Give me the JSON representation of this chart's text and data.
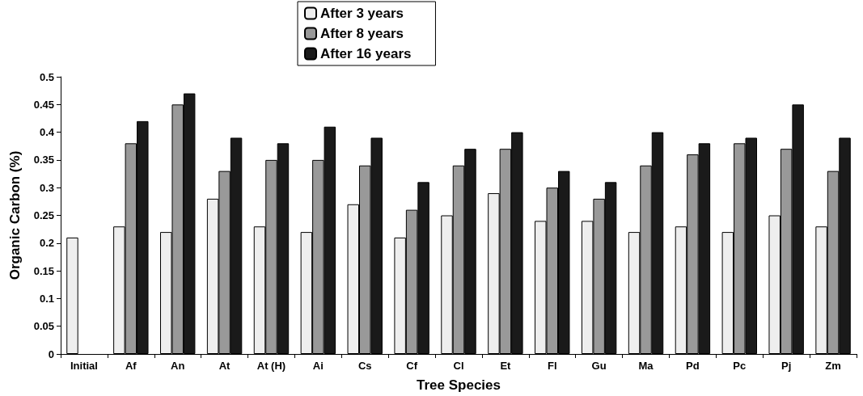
{
  "chart_data": {
    "type": "bar",
    "xlabel": "Tree Species",
    "ylabel": "Organic Carbon (%)",
    "categories": [
      "Initial",
      "Af",
      "An",
      "At",
      "At (H)",
      "Ai",
      "Cs",
      "Cf",
      "Cl",
      "Et",
      "Fl",
      "Gu",
      "Ma",
      "Pd",
      "Pc",
      "Pj",
      "Zm"
    ],
    "series": [
      {
        "name": "After 3 years",
        "color": "#eeeeee",
        "values": [
          0.21,
          0.23,
          0.22,
          0.28,
          0.23,
          0.22,
          0.27,
          0.21,
          0.25,
          0.29,
          0.24,
          0.24,
          0.22,
          0.23,
          0.22,
          0.25,
          0.23
        ]
      },
      {
        "name": "After 8 years",
        "color": "#999999",
        "values": [
          null,
          0.38,
          0.45,
          0.33,
          0.35,
          0.35,
          0.34,
          0.26,
          0.34,
          0.37,
          0.3,
          0.28,
          0.34,
          0.36,
          0.38,
          0.37,
          0.33
        ]
      },
      {
        "name": "After 16 years",
        "color": "#1a1a1a",
        "values": [
          null,
          0.42,
          0.47,
          0.39,
          0.38,
          0.41,
          0.39,
          0.31,
          0.37,
          0.4,
          0.33,
          0.31,
          0.4,
          0.38,
          0.39,
          0.45,
          0.39
        ]
      }
    ],
    "ylim": [
      0,
      0.5
    ],
    "yticks": [
      0,
      0.05,
      0.1,
      0.15,
      0.2,
      0.25,
      0.3,
      0.35,
      0.4,
      0.45,
      0.5
    ],
    "grid": false,
    "legend": "top"
  }
}
